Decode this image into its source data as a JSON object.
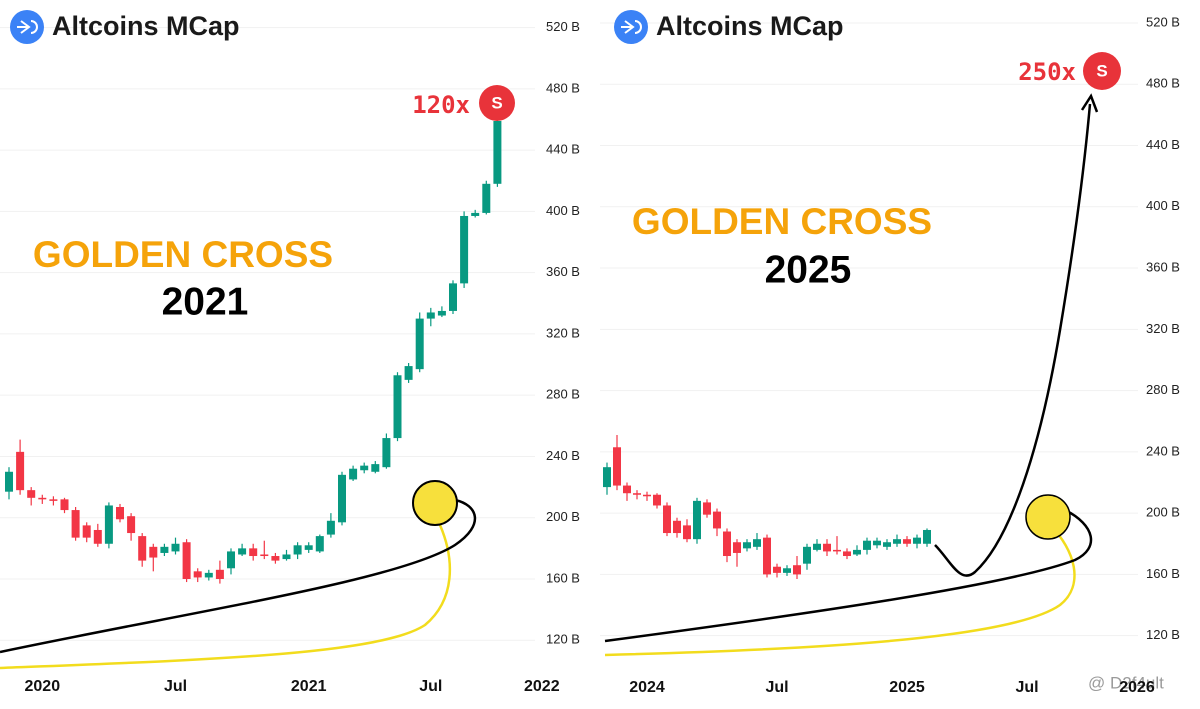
{
  "chart_data": [
    {
      "type": "candlestick",
      "title": "Altcoins MCap",
      "annotations": {
        "headline": "GOLDEN CROSS",
        "year": "2021",
        "multiplier": "120x",
        "signal": "S"
      },
      "up_color": "#089981",
      "down_color": "#f23645",
      "grid": true,
      "ylim": [
        81,
        538
      ],
      "yticks": [
        {
          "value": 120,
          "label": "120 B"
        },
        {
          "value": 160,
          "label": "160 B"
        },
        {
          "value": 200,
          "label": "200 B"
        },
        {
          "value": 240,
          "label": "240 B"
        },
        {
          "value": 280,
          "label": "280 B"
        },
        {
          "value": 320,
          "label": "320 B"
        },
        {
          "value": 360,
          "label": "360 B"
        },
        {
          "value": 400,
          "label": "400 B"
        },
        {
          "value": 440,
          "label": "440 B"
        },
        {
          "value": 480,
          "label": "480 B"
        },
        {
          "value": 520,
          "label": "520 B"
        }
      ],
      "categories": [
        null,
        null,
        null,
        "2020",
        null,
        null,
        null,
        null,
        null,
        null,
        null,
        null,
        null,
        null,
        null,
        "Jul",
        null,
        null,
        null,
        null,
        null,
        null,
        null,
        null,
        null,
        null,
        null,
        "2021",
        null,
        null,
        null,
        null,
        null,
        null,
        null,
        null,
        null,
        null,
        "Jul",
        null,
        null,
        null,
        null,
        null,
        null,
        null,
        null,
        null,
        "2022",
        null,
        null
      ],
      "open": [
        217,
        243,
        218,
        213,
        212,
        212,
        205,
        195,
        192,
        183,
        207,
        201,
        188,
        181,
        177,
        178,
        184,
        165,
        161,
        166,
        167,
        176,
        180,
        176,
        175,
        173,
        176,
        179,
        178,
        189,
        197,
        225,
        231,
        230,
        233,
        252,
        290,
        297,
        330,
        332,
        335,
        353,
        397,
        399,
        418,
        null,
        null,
        null,
        null,
        null,
        null
      ],
      "high": [
        233,
        251,
        220,
        215,
        214,
        213,
        207,
        197,
        196,
        210,
        209,
        203,
        190,
        183,
        183,
        187,
        186,
        167,
        166,
        172,
        180,
        183,
        183,
        185,
        177,
        179,
        184,
        184,
        189,
        203,
        230,
        234,
        236,
        237,
        255,
        295,
        301,
        334,
        337,
        338,
        355,
        400,
        401,
        420,
        461,
        null,
        null,
        null,
        null,
        null,
        null
      ],
      "low": [
        212,
        215,
        208,
        209,
        208,
        203,
        185,
        184,
        181,
        180,
        197,
        185,
        168,
        165,
        175,
        176,
        158,
        158,
        159,
        157,
        163,
        175,
        172,
        173,
        170,
        172,
        173,
        177,
        177,
        187,
        195,
        224,
        229,
        229,
        232,
        250,
        288,
        295,
        325,
        331,
        333,
        350,
        396,
        398,
        416,
        null,
        null,
        null,
        null,
        null,
        null
      ],
      "close": [
        230,
        218,
        213,
        212,
        211,
        205,
        187,
        187,
        183,
        208,
        199,
        190,
        172,
        174,
        181,
        183,
        160,
        161,
        164,
        160,
        178,
        180,
        175,
        175,
        172,
        176,
        182,
        182,
        188,
        198,
        228,
        232,
        234,
        235,
        252,
        293,
        299,
        330,
        334,
        335,
        353,
        397,
        399,
        418,
        459,
        null,
        null,
        null,
        null,
        null,
        null
      ]
    },
    {
      "type": "candlestick",
      "title": "Altcoins MCap",
      "annotations": {
        "headline": "GOLDEN CROSS",
        "year": "2025",
        "multiplier": "250x",
        "signal": "S"
      },
      "up_color": "#089981",
      "down_color": "#f23645",
      "grid": true,
      "ylim": [
        78,
        535
      ],
      "yticks": [
        {
          "value": 120,
          "label": "120 B"
        },
        {
          "value": 160,
          "label": "160 B"
        },
        {
          "value": 200,
          "label": "200 B"
        },
        {
          "value": 240,
          "label": "240 B"
        },
        {
          "value": 280,
          "label": "280 B"
        },
        {
          "value": 320,
          "label": "320 B"
        },
        {
          "value": 360,
          "label": "360 B"
        },
        {
          "value": 400,
          "label": "400 B"
        },
        {
          "value": 440,
          "label": "440 B"
        },
        {
          "value": 480,
          "label": "480 B"
        },
        {
          "value": 520,
          "label": "520 B"
        }
      ],
      "categories": [
        null,
        null,
        null,
        null,
        "2024",
        null,
        null,
        null,
        null,
        null,
        null,
        null,
        null,
        null,
        null,
        null,
        null,
        "Jul",
        null,
        null,
        null,
        null,
        null,
        null,
        null,
        null,
        null,
        null,
        null,
        null,
        "2025",
        null,
        null,
        null,
        null,
        null,
        null,
        null,
        null,
        null,
        null,
        null,
        "Jul",
        null,
        null,
        null,
        null,
        null,
        null,
        null,
        null,
        null,
        null,
        "2026"
      ],
      "open": [
        217,
        243,
        218,
        213,
        212,
        212,
        205,
        195,
        192,
        183,
        207,
        201,
        188,
        181,
        177,
        178,
        184,
        165,
        161,
        166,
        167,
        176,
        180,
        176,
        175,
        173,
        176,
        179,
        178,
        180,
        183,
        180,
        180,
        null,
        null,
        null,
        null,
        null,
        null,
        null,
        null,
        null,
        null,
        null,
        null,
        null,
        null,
        null,
        null,
        null,
        null,
        null,
        null,
        null
      ],
      "high": [
        233,
        251,
        220,
        215,
        214,
        213,
        207,
        197,
        196,
        210,
        209,
        203,
        190,
        183,
        183,
        187,
        186,
        167,
        166,
        172,
        180,
        183,
        183,
        185,
        177,
        179,
        184,
        184,
        183,
        186,
        185,
        186,
        190,
        null,
        null,
        null,
        null,
        null,
        null,
        null,
        null,
        null,
        null,
        null,
        null,
        null,
        null,
        null,
        null,
        null,
        null,
        null,
        null,
        null
      ],
      "low": [
        212,
        215,
        208,
        209,
        208,
        203,
        185,
        184,
        181,
        180,
        197,
        185,
        168,
        165,
        175,
        176,
        158,
        158,
        159,
        157,
        163,
        175,
        172,
        173,
        170,
        172,
        173,
        177,
        176,
        178,
        178,
        177,
        178,
        null,
        null,
        null,
        null,
        null,
        null,
        null,
        null,
        null,
        null,
        null,
        null,
        null,
        null,
        null,
        null,
        null,
        null,
        null,
        null,
        null
      ],
      "close": [
        230,
        218,
        213,
        212,
        211,
        205,
        187,
        187,
        183,
        208,
        199,
        190,
        172,
        174,
        181,
        183,
        160,
        161,
        164,
        160,
        178,
        180,
        175,
        175,
        172,
        176,
        182,
        182,
        181,
        183,
        180,
        184,
        189,
        null,
        null,
        null,
        null,
        null,
        null,
        null,
        null,
        null,
        null,
        null,
        null,
        null,
        null,
        null,
        null,
        null,
        null,
        null,
        null,
        null
      ]
    }
  ],
  "watermark": "@ D2f4ult"
}
